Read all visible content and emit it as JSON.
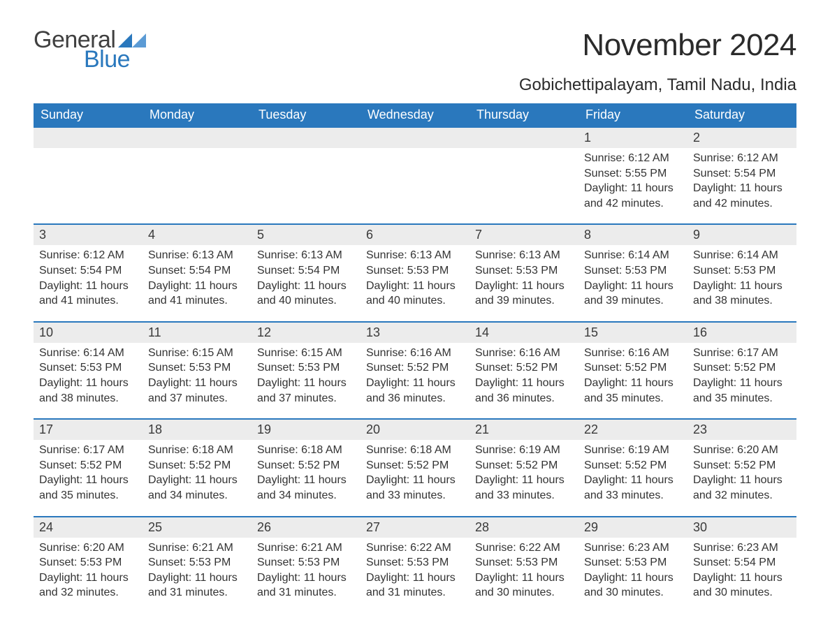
{
  "brand": {
    "general": "General",
    "blue": "Blue"
  },
  "title": "November 2024",
  "subtitle": "Gobichettipalayam, Tamil Nadu, India",
  "colors": {
    "header_bg": "#2a78bd",
    "header_fg": "#ffffff",
    "daybar_bg": "#ececec",
    "daybar_border": "#2a78bd",
    "text": "#333333",
    "bg": "#ffffff"
  },
  "day_names": [
    "Sunday",
    "Monday",
    "Tuesday",
    "Wednesday",
    "Thursday",
    "Friday",
    "Saturday"
  ],
  "sunrise_prefix": "Sunrise: ",
  "sunset_prefix": "Sunset: ",
  "daylight_prefix": "Daylight: ",
  "weeks": [
    [
      {
        "blank": true
      },
      {
        "blank": true
      },
      {
        "blank": true
      },
      {
        "blank": true
      },
      {
        "blank": true
      },
      {
        "day": "1",
        "sunrise": "6:12 AM",
        "sunset": "5:55 PM",
        "daylight": "11 hours and 42 minutes."
      },
      {
        "day": "2",
        "sunrise": "6:12 AM",
        "sunset": "5:54 PM",
        "daylight": "11 hours and 42 minutes."
      }
    ],
    [
      {
        "day": "3",
        "sunrise": "6:12 AM",
        "sunset": "5:54 PM",
        "daylight": "11 hours and 41 minutes."
      },
      {
        "day": "4",
        "sunrise": "6:13 AM",
        "sunset": "5:54 PM",
        "daylight": "11 hours and 41 minutes."
      },
      {
        "day": "5",
        "sunrise": "6:13 AM",
        "sunset": "5:54 PM",
        "daylight": "11 hours and 40 minutes."
      },
      {
        "day": "6",
        "sunrise": "6:13 AM",
        "sunset": "5:53 PM",
        "daylight": "11 hours and 40 minutes."
      },
      {
        "day": "7",
        "sunrise": "6:13 AM",
        "sunset": "5:53 PM",
        "daylight": "11 hours and 39 minutes."
      },
      {
        "day": "8",
        "sunrise": "6:14 AM",
        "sunset": "5:53 PM",
        "daylight": "11 hours and 39 minutes."
      },
      {
        "day": "9",
        "sunrise": "6:14 AM",
        "sunset": "5:53 PM",
        "daylight": "11 hours and 38 minutes."
      }
    ],
    [
      {
        "day": "10",
        "sunrise": "6:14 AM",
        "sunset": "5:53 PM",
        "daylight": "11 hours and 38 minutes."
      },
      {
        "day": "11",
        "sunrise": "6:15 AM",
        "sunset": "5:53 PM",
        "daylight": "11 hours and 37 minutes."
      },
      {
        "day": "12",
        "sunrise": "6:15 AM",
        "sunset": "5:53 PM",
        "daylight": "11 hours and 37 minutes."
      },
      {
        "day": "13",
        "sunrise": "6:16 AM",
        "sunset": "5:52 PM",
        "daylight": "11 hours and 36 minutes."
      },
      {
        "day": "14",
        "sunrise": "6:16 AM",
        "sunset": "5:52 PM",
        "daylight": "11 hours and 36 minutes."
      },
      {
        "day": "15",
        "sunrise": "6:16 AM",
        "sunset": "5:52 PM",
        "daylight": "11 hours and 35 minutes."
      },
      {
        "day": "16",
        "sunrise": "6:17 AM",
        "sunset": "5:52 PM",
        "daylight": "11 hours and 35 minutes."
      }
    ],
    [
      {
        "day": "17",
        "sunrise": "6:17 AM",
        "sunset": "5:52 PM",
        "daylight": "11 hours and 35 minutes."
      },
      {
        "day": "18",
        "sunrise": "6:18 AM",
        "sunset": "5:52 PM",
        "daylight": "11 hours and 34 minutes."
      },
      {
        "day": "19",
        "sunrise": "6:18 AM",
        "sunset": "5:52 PM",
        "daylight": "11 hours and 34 minutes."
      },
      {
        "day": "20",
        "sunrise": "6:18 AM",
        "sunset": "5:52 PM",
        "daylight": "11 hours and 33 minutes."
      },
      {
        "day": "21",
        "sunrise": "6:19 AM",
        "sunset": "5:52 PM",
        "daylight": "11 hours and 33 minutes."
      },
      {
        "day": "22",
        "sunrise": "6:19 AM",
        "sunset": "5:52 PM",
        "daylight": "11 hours and 33 minutes."
      },
      {
        "day": "23",
        "sunrise": "6:20 AM",
        "sunset": "5:52 PM",
        "daylight": "11 hours and 32 minutes."
      }
    ],
    [
      {
        "day": "24",
        "sunrise": "6:20 AM",
        "sunset": "5:53 PM",
        "daylight": "11 hours and 32 minutes."
      },
      {
        "day": "25",
        "sunrise": "6:21 AM",
        "sunset": "5:53 PM",
        "daylight": "11 hours and 31 minutes."
      },
      {
        "day": "26",
        "sunrise": "6:21 AM",
        "sunset": "5:53 PM",
        "daylight": "11 hours and 31 minutes."
      },
      {
        "day": "27",
        "sunrise": "6:22 AM",
        "sunset": "5:53 PM",
        "daylight": "11 hours and 31 minutes."
      },
      {
        "day": "28",
        "sunrise": "6:22 AM",
        "sunset": "5:53 PM",
        "daylight": "11 hours and 30 minutes."
      },
      {
        "day": "29",
        "sunrise": "6:23 AM",
        "sunset": "5:53 PM",
        "daylight": "11 hours and 30 minutes."
      },
      {
        "day": "30",
        "sunrise": "6:23 AM",
        "sunset": "5:54 PM",
        "daylight": "11 hours and 30 minutes."
      }
    ]
  ]
}
